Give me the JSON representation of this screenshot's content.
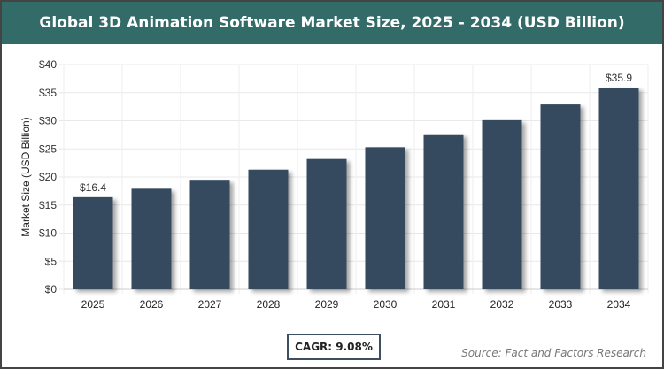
{
  "chart_data": {
    "type": "bar",
    "title": "Global 3D Animation Software Market Size, 2025 - 2034 (USD Billion)",
    "ylabel": "Market Size (USD Billion)",
    "xlabel": "",
    "categories": [
      "2025",
      "2026",
      "2027",
      "2028",
      "2029",
      "2030",
      "2031",
      "2032",
      "2033",
      "2034"
    ],
    "values": [
      16.4,
      17.9,
      19.5,
      21.3,
      23.2,
      25.3,
      27.6,
      30.1,
      32.9,
      35.9
    ],
    "data_labels": {
      "0": "$16.4",
      "9": "$35.9"
    },
    "ylim": [
      0,
      40
    ],
    "yticks": [
      "$0",
      "$5",
      "$10",
      "$15",
      "$20",
      "$25",
      "$30",
      "$35",
      "$40"
    ],
    "grid": true,
    "bar_color": "#364a5f",
    "header_color": "#336b68"
  },
  "cagr": "CAGR: 9.08%",
  "source": "Source: Fact and Factors Research"
}
